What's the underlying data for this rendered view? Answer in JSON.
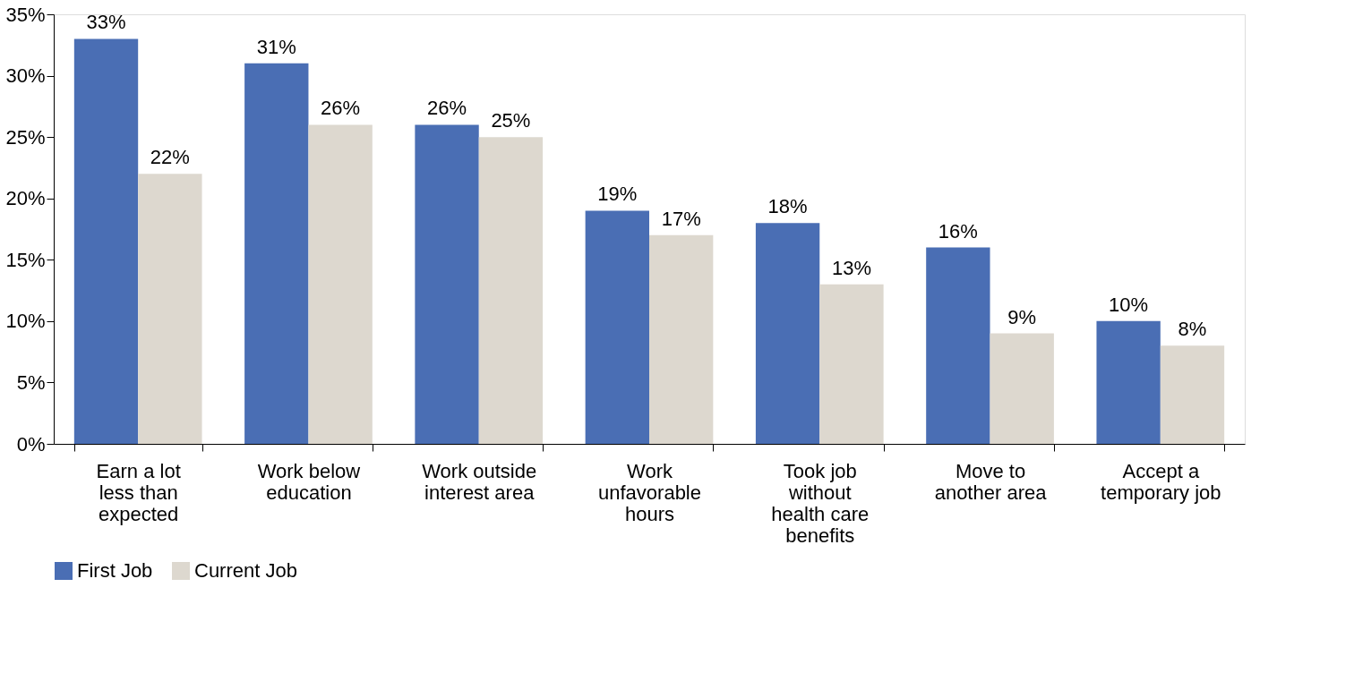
{
  "chart_data": {
    "type": "bar",
    "categories": [
      "Earn a lot less than expected",
      "Work below education",
      "Work outside interest area",
      "Work unfavorable hours",
      "Took job without health care benefits",
      "Move to another area",
      "Accept a temporary job"
    ],
    "series": [
      {
        "name": "First Job",
        "color": "#4a6eb4",
        "values": [
          33,
          31,
          26,
          19,
          18,
          16,
          10
        ],
        "value_labels": [
          "33%",
          "31%",
          "26%",
          "19%",
          "18%",
          "16%",
          "10%"
        ]
      },
      {
        "name": "Current Job",
        "color": "#ddd8cf",
        "values": [
          22,
          26,
          25,
          17,
          13,
          9,
          8
        ],
        "value_labels": [
          "22%",
          "26%",
          "25%",
          "17%",
          "13%",
          "9%",
          "8%"
        ]
      }
    ],
    "ylim": [
      0,
      35
    ],
    "yticks": [
      {
        "value": 0,
        "label": "0%"
      },
      {
        "value": 5,
        "label": "5%"
      },
      {
        "value": 10,
        "label": "10%"
      },
      {
        "value": 15,
        "label": "15%"
      },
      {
        "value": 20,
        "label": "20%"
      },
      {
        "value": 25,
        "label": "25%"
      },
      {
        "value": 30,
        "label": "30%"
      },
      {
        "value": 35,
        "label": "35%"
      }
    ],
    "grid": false,
    "legend": "bottom"
  }
}
